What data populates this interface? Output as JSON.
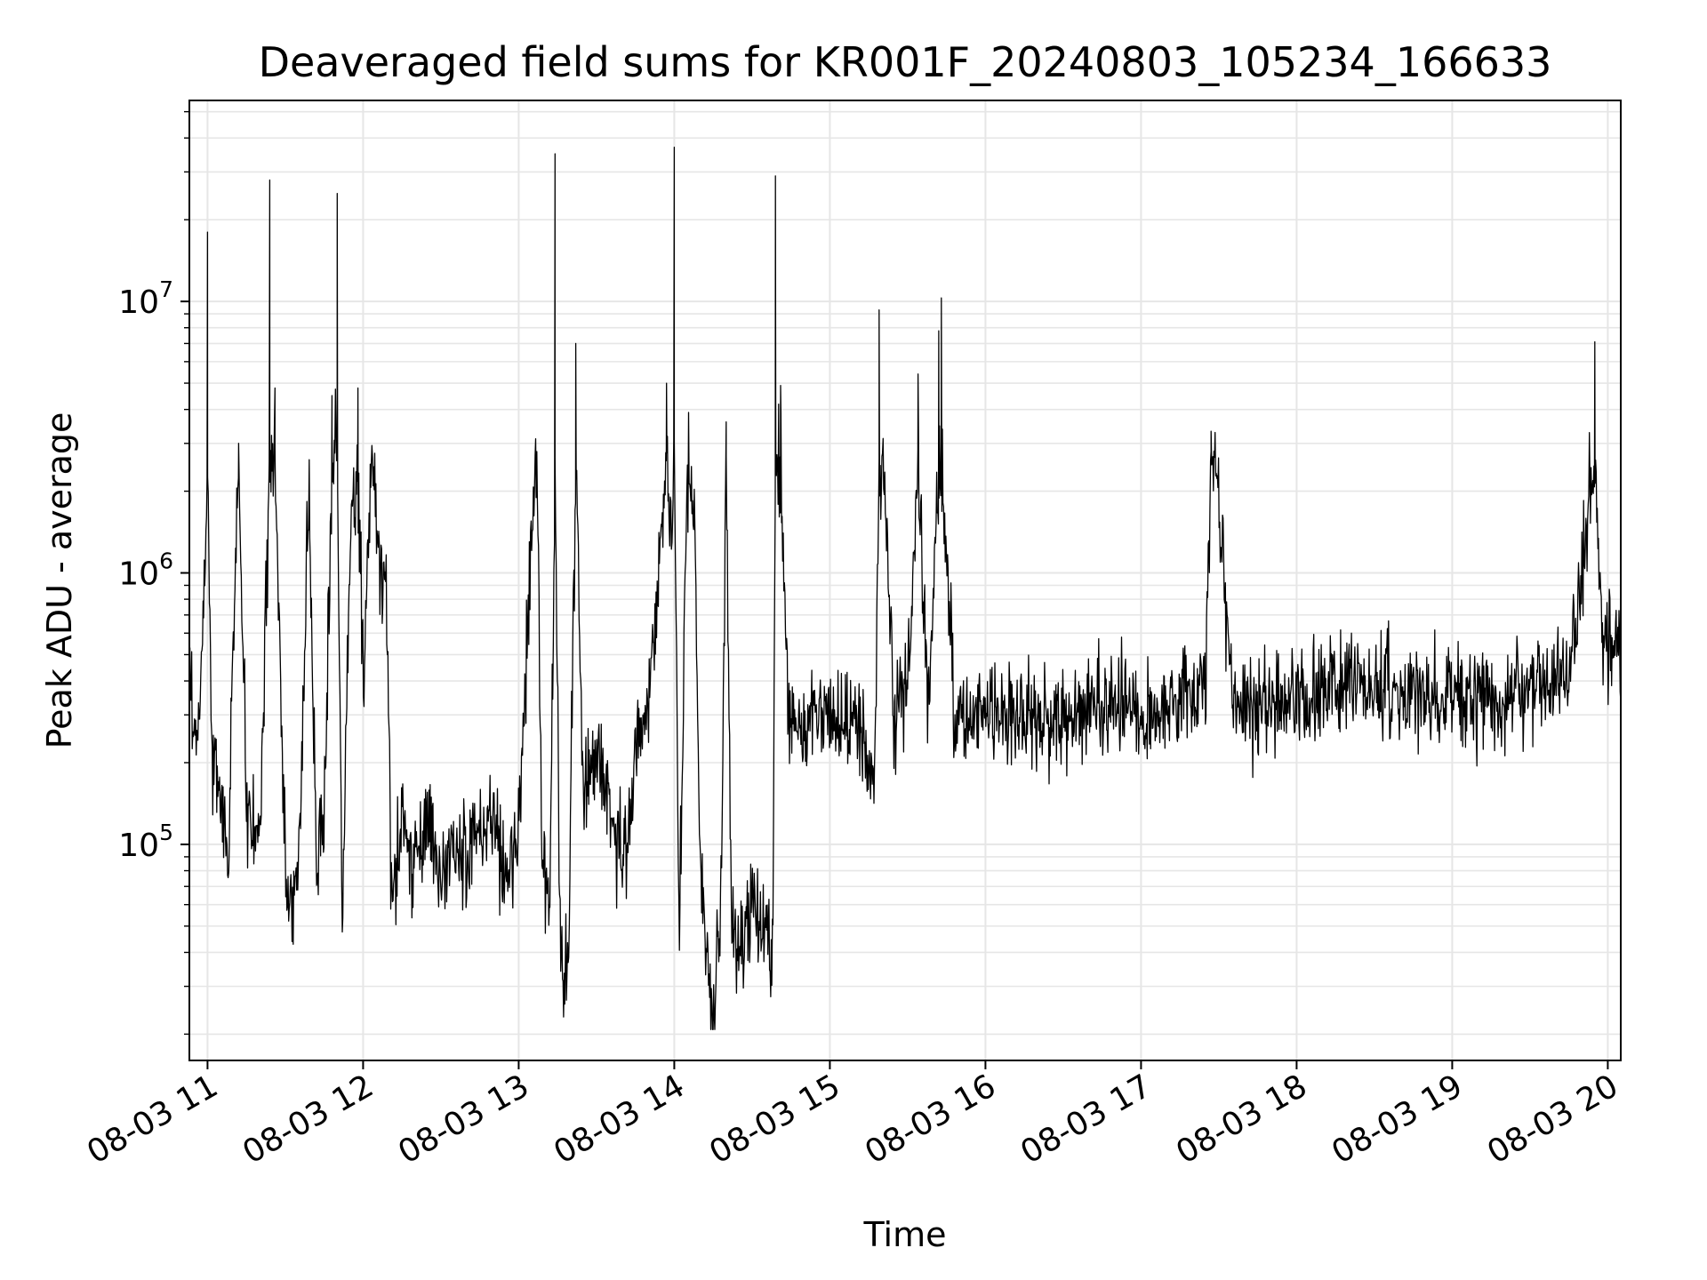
{
  "chart_data": {
    "type": "line",
    "title": "Deaveraged field sums for KR001F_20240803_105234_166633",
    "xlabel": "Time",
    "ylabel": "Peak ADU - average",
    "yscale": "log",
    "ylim": [
      16000,
      55000000
    ],
    "xlim": [
      "08-03 10:53",
      "08-03 20:05"
    ],
    "grid": true,
    "line_color": "#000000",
    "grid_color": "#e6e6e6",
    "x_ticks": [
      {
        "t": "08-03 11:00",
        "label": "08-03 11"
      },
      {
        "t": "08-03 12:00",
        "label": "08-03 12"
      },
      {
        "t": "08-03 13:00",
        "label": "08-03 13"
      },
      {
        "t": "08-03 14:00",
        "label": "08-03 14"
      },
      {
        "t": "08-03 15:00",
        "label": "08-03 15"
      },
      {
        "t": "08-03 16:00",
        "label": "08-03 16"
      },
      {
        "t": "08-03 17:00",
        "label": "08-03 17"
      },
      {
        "t": "08-03 18:00",
        "label": "08-03 18"
      },
      {
        "t": "08-03 19:00",
        "label": "08-03 19"
      },
      {
        "t": "08-03 20:00",
        "label": "08-03 20"
      }
    ],
    "y_ticks": [
      {
        "value": 100000,
        "base": "10",
        "exp": "5"
      },
      {
        "value": 1000000,
        "base": "10",
        "exp": "6"
      },
      {
        "value": 10000000,
        "base": "10",
        "exp": "7"
      }
    ],
    "series": [
      {
        "points": [
          [
            "08-03 10:53",
            400000
          ],
          [
            "08-03 10:56",
            250000
          ],
          [
            "08-03 10:58",
            500000
          ],
          [
            "08-03 11:00",
            18000000
          ],
          [
            "08-03 11:02",
            200000
          ],
          [
            "08-03 11:05",
            150000
          ],
          [
            "08-03 11:08",
            100000
          ],
          [
            "08-03 11:12",
            3000000
          ],
          [
            "08-03 11:15",
            150000
          ],
          [
            "08-03 11:20",
            90000
          ],
          [
            "08-03 11:24",
            28000000
          ],
          [
            "08-03 11:26",
            4800000
          ],
          [
            "08-03 11:30",
            80000
          ],
          [
            "08-03 11:33",
            60000
          ],
          [
            "08-03 11:36",
            130000
          ],
          [
            "08-03 11:39",
            2100000
          ],
          [
            "08-03 11:42",
            80000
          ],
          [
            "08-03 11:45",
            130000
          ],
          [
            "08-03 11:48",
            4500000
          ],
          [
            "08-03 11:50",
            25000000
          ],
          [
            "08-03 11:52",
            50000
          ],
          [
            "08-03 11:55",
            1500000
          ],
          [
            "08-03 11:58",
            4800000
          ],
          [
            "08-03 12:00",
            400000
          ],
          [
            "08-03 12:03",
            2500000
          ],
          [
            "08-03 12:06",
            1200000
          ],
          [
            "08-03 12:09",
            900000
          ],
          [
            "08-03 12:11",
            60000
          ],
          [
            "08-03 12:15",
            110000
          ],
          [
            "08-03 12:20",
            90000
          ],
          [
            "08-03 12:25",
            120000
          ],
          [
            "08-03 12:30",
            80000
          ],
          [
            "08-03 12:35",
            100000
          ],
          [
            "08-03 12:40",
            90000
          ],
          [
            "08-03 12:45",
            110000
          ],
          [
            "08-03 12:50",
            130000
          ],
          [
            "08-03 12:55",
            80000
          ],
          [
            "08-03 13:00",
            110000
          ],
          [
            "08-03 13:05",
            1500000
          ],
          [
            "08-03 13:07",
            2800000
          ],
          [
            "08-03 13:09",
            90000
          ],
          [
            "08-03 13:12",
            60000
          ],
          [
            "08-03 13:14",
            35000000
          ],
          [
            "08-03 13:16",
            40000
          ],
          [
            "08-03 13:19",
            30000
          ],
          [
            "08-03 13:22",
            7000000
          ],
          [
            "08-03 13:25",
            150000
          ],
          [
            "08-03 13:30",
            200000
          ],
          [
            "08-03 13:35",
            130000
          ],
          [
            "08-03 13:40",
            90000
          ],
          [
            "08-03 13:45",
            200000
          ],
          [
            "08-03 13:50",
            350000
          ],
          [
            "08-03 13:55",
            1300000
          ],
          [
            "08-03 13:57",
            5000000
          ],
          [
            "08-03 13:59",
            1000000
          ],
          [
            "08-03 14:00",
            37000000
          ],
          [
            "08-03 14:02",
            50000
          ],
          [
            "08-03 14:05",
            2500000
          ],
          [
            "08-03 14:08",
            1500000
          ],
          [
            "08-03 14:10",
            80000
          ],
          [
            "08-03 14:12",
            45000
          ],
          [
            "08-03 14:15",
            22000
          ],
          [
            "08-03 14:18",
            60000
          ],
          [
            "08-03 14:20",
            3600000
          ],
          [
            "08-03 14:22",
            50000
          ],
          [
            "08-03 14:25",
            40000
          ],
          [
            "08-03 14:30",
            60000
          ],
          [
            "08-03 14:35",
            50000
          ],
          [
            "08-03 14:38",
            40000
          ],
          [
            "08-03 14:39",
            29000000
          ],
          [
            "08-03 14:41",
            4900000
          ],
          [
            "08-03 14:44",
            300000
          ],
          [
            "08-03 14:50",
            250000
          ],
          [
            "08-03 14:55",
            350000
          ],
          [
            "08-03 15:00",
            280000
          ],
          [
            "08-03 15:10",
            320000
          ],
          [
            "08-03 15:17",
            150000
          ],
          [
            "08-03 15:19",
            9300000
          ],
          [
            "08-03 15:21",
            1900000
          ],
          [
            "08-03 15:25",
            300000
          ],
          [
            "08-03 15:30",
            400000
          ],
          [
            "08-03 15:34",
            5400000
          ],
          [
            "08-03 15:38",
            300000
          ],
          [
            "08-03 15:42",
            7800000
          ],
          [
            "08-03 15:43",
            10300000
          ],
          [
            "08-03 15:48",
            300000
          ],
          [
            "08-03 16:00",
            320000
          ],
          [
            "08-03 16:15",
            280000
          ],
          [
            "08-03 16:30",
            300000
          ],
          [
            "08-03 16:45",
            350000
          ],
          [
            "08-03 17:00",
            300000
          ],
          [
            "08-03 17:15",
            330000
          ],
          [
            "08-03 17:25",
            400000
          ],
          [
            "08-03 17:27",
            2800000
          ],
          [
            "08-03 17:29",
            2500000
          ],
          [
            "08-03 17:35",
            350000
          ],
          [
            "08-03 17:50",
            320000
          ],
          [
            "08-03 18:00",
            350000
          ],
          [
            "08-03 18:15",
            400000
          ],
          [
            "08-03 18:30",
            370000
          ],
          [
            "08-03 18:45",
            360000
          ],
          [
            "08-03 19:00",
            330000
          ],
          [
            "08-03 19:15",
            340000
          ],
          [
            "08-03 19:30",
            380000
          ],
          [
            "08-03 19:45",
            420000
          ],
          [
            "08-03 19:55",
            7100000
          ],
          [
            "08-03 19:58",
            550000
          ],
          [
            "08-03 20:05",
            520000
          ]
        ]
      }
    ]
  }
}
